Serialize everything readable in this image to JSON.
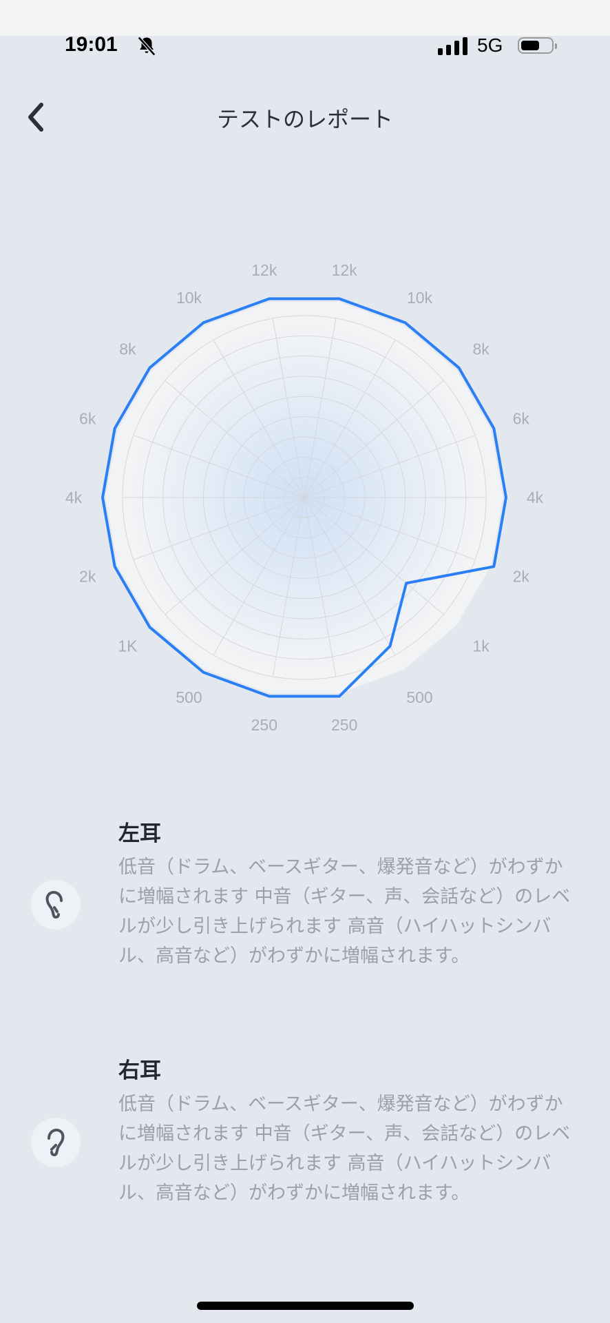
{
  "status_bar": {
    "time": "19:01",
    "network": "5G",
    "silent_icon": "bell-slash-icon",
    "battery_level": 0.6
  },
  "header": {
    "title": "テストのレポート",
    "back_icon": "chevron-left-icon"
  },
  "chart_data": {
    "type": "radar",
    "grid": true,
    "rings": 9,
    "line_color": "#2a7ff5",
    "categories_clockwise_from_top": [
      "12k",
      "10k",
      "8k",
      "6k",
      "4k",
      "2k",
      "1k",
      "500",
      "250",
      "250",
      "500",
      "1K",
      "2k",
      "4k",
      "6k",
      "8k",
      "10k",
      "12k"
    ],
    "values": [
      1,
      1,
      1,
      1,
      1,
      1,
      0.66,
      0.85,
      1,
      1,
      1,
      1,
      1,
      1,
      1,
      1,
      1,
      1
    ],
    "value_max": 1
  },
  "ears": [
    {
      "title": "左耳",
      "icon": "left-ear-icon",
      "description": "低音（ドラム、ベースギター、爆発音など）がわずかに増幅されます 中音（ギター、声、会話など）のレベルが少し引き上げられます 高音（ハイハットシンバル、高音など）がわずかに増幅されます。"
    },
    {
      "title": "右耳",
      "icon": "right-ear-icon",
      "description": "低音（ドラム、ベースギター、爆発音など）がわずかに増幅されます 中音（ギター、声、会話など）のレベルが少し引き上げられます 高音（ハイハットシンバル、高音など）がわずかに増幅されます。"
    }
  ]
}
